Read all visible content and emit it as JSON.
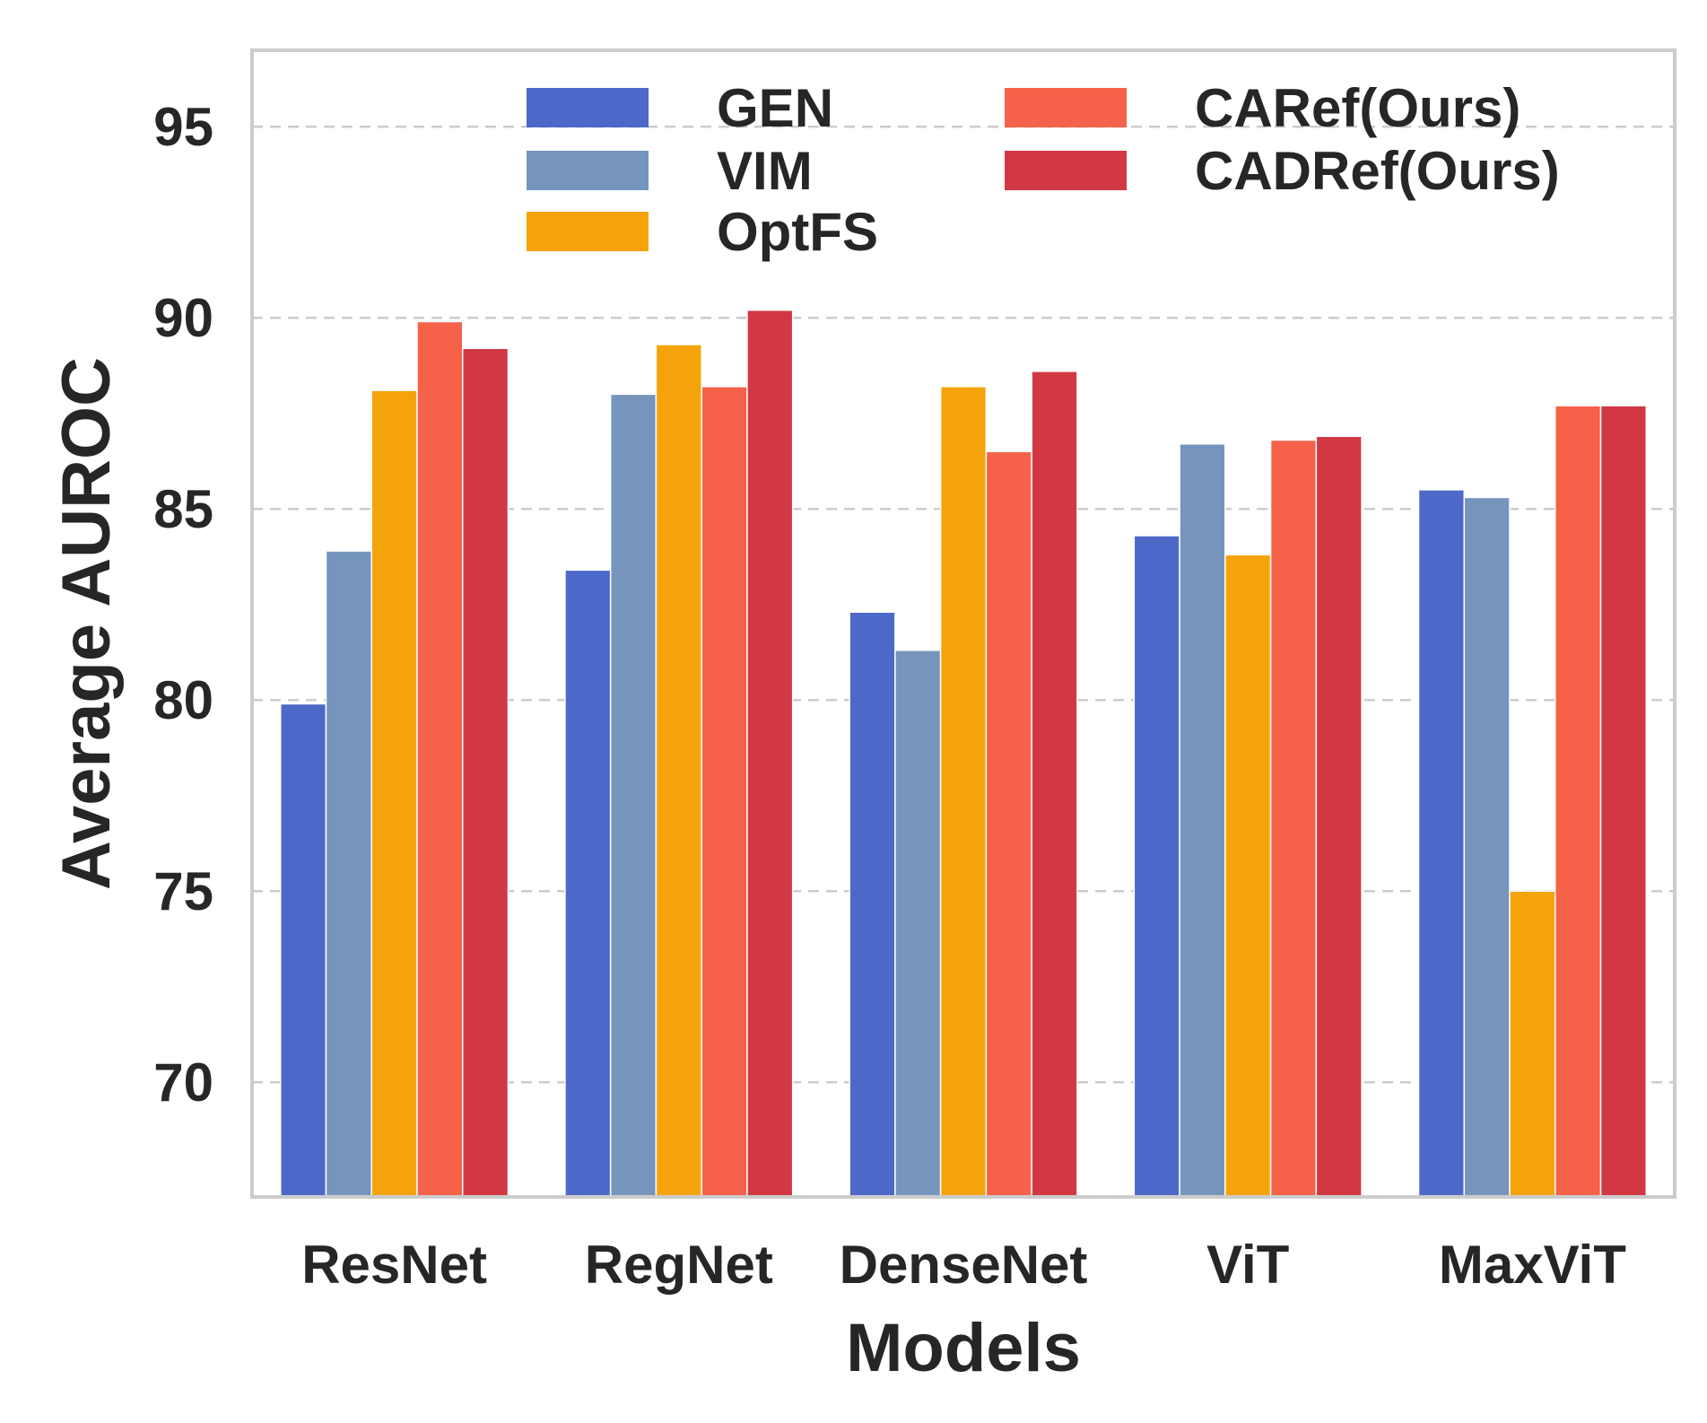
{
  "chart_data": {
    "type": "bar",
    "title": "",
    "xlabel": "Models",
    "ylabel": "Average AUROC",
    "categories": [
      "ResNet",
      "RegNet",
      "DenseNet",
      "ViT",
      "MaxViT"
    ],
    "ylim": [
      67,
      97
    ],
    "yticks": [
      70,
      75,
      80,
      85,
      90,
      95
    ],
    "grid": "horizontal-dashed",
    "legend_position": "top-center",
    "legend_columns": 2,
    "series": [
      {
        "name": "GEN",
        "color": "#4c69c9",
        "values": [
          79.9,
          83.4,
          82.3,
          84.3,
          85.5
        ]
      },
      {
        "name": "VIM",
        "color": "#7595bd",
        "values": [
          83.9,
          88.0,
          81.3,
          86.7,
          85.3
        ]
      },
      {
        "name": "OptFS",
        "color": "#f5a30a",
        "values": [
          88.1,
          89.3,
          88.2,
          83.8,
          75.0
        ]
      },
      {
        "name": "CARef(Ours)",
        "color": "#f56249",
        "values": [
          89.9,
          88.2,
          86.5,
          86.8,
          87.7
        ]
      },
      {
        "name": "CADRef(Ours)",
        "color": "#d13843",
        "values": [
          89.2,
          90.2,
          88.6,
          86.9,
          87.7
        ]
      }
    ]
  }
}
